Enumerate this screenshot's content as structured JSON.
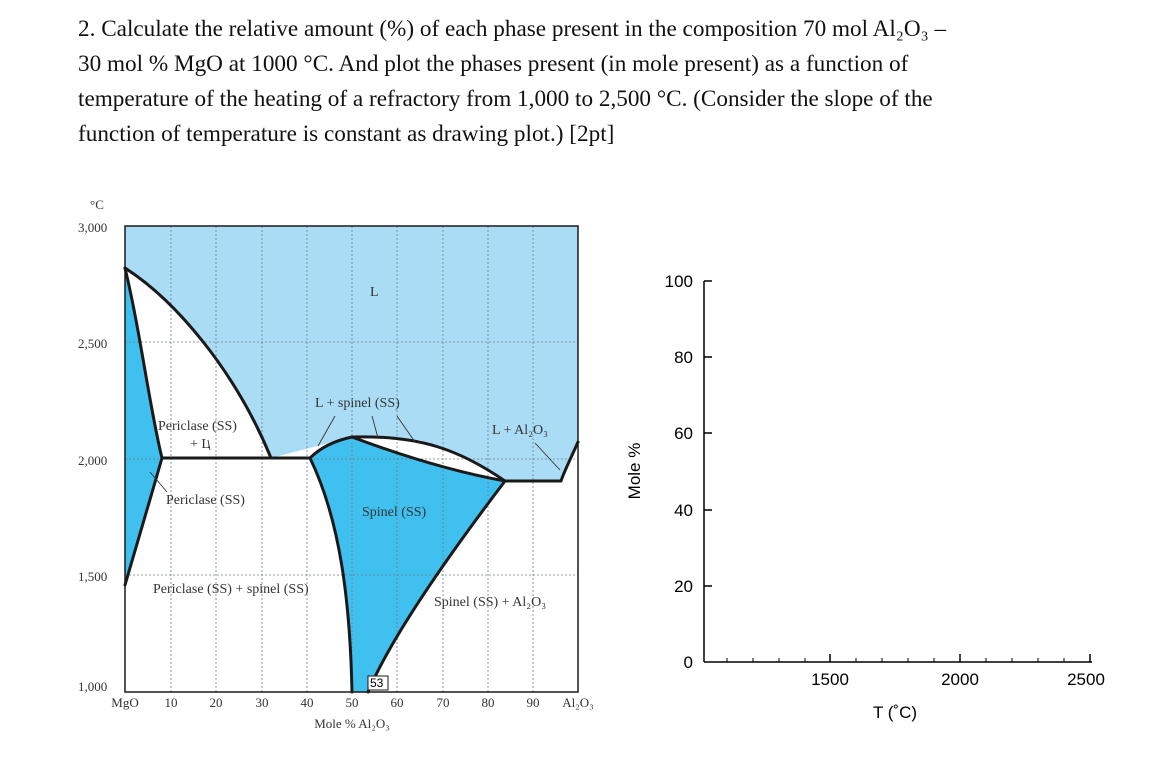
{
  "question": {
    "lines": [
      "2. Calculate the relative amount (%) of each phase present in the composition 70 mol Al₂O₃ –",
      "30 mol % MgO at 1000 °C. And plot the phases present (in mole present) as a function of",
      "temperature of the heating of a refractory from 1,000 to 2,500 °C. (Consider the slope of the",
      "function of temperature is constant as drawing plot.) [2pt]"
    ]
  },
  "phase_diagram": {
    "unit_label": "°C",
    "y_ticks": [
      "3,000",
      "2,500",
      "2,000",
      "1,500",
      "1,000"
    ],
    "x_ticks": [
      "MgO",
      "10",
      "20",
      "30",
      "40",
      "50",
      "60",
      "70",
      "80",
      "90",
      "Al₂O₃"
    ],
    "x_axis_label": "Mole % Al₂O₃",
    "marker_label": "53",
    "regions": {
      "liquid": "L",
      "l_spinel": "L + spinel (SS)",
      "l_al2o3": "L + Al₂O₃",
      "periclase_l_1": "Periclase (SS)",
      "periclase_l_2": "+ L",
      "periclase": "Periclase (SS)",
      "spinel": "Spinel (SS)",
      "periclase_spinel": "Periclase (SS) + spinel (SS)",
      "spinel_al2o3": "Spinel (SS) + Al₂O₃"
    },
    "colors": {
      "liquid": "#aadcf6",
      "solid_solution": "#3fc0ee",
      "line": "#1a1a1a"
    }
  },
  "answer_plot": {
    "y_label": "Mole %",
    "y_ticks": [
      "100",
      "80",
      "60",
      "40",
      "20",
      "0"
    ],
    "x_label": "T (˚C)",
    "x_ticks": [
      "1500",
      "2000",
      "2500"
    ]
  }
}
